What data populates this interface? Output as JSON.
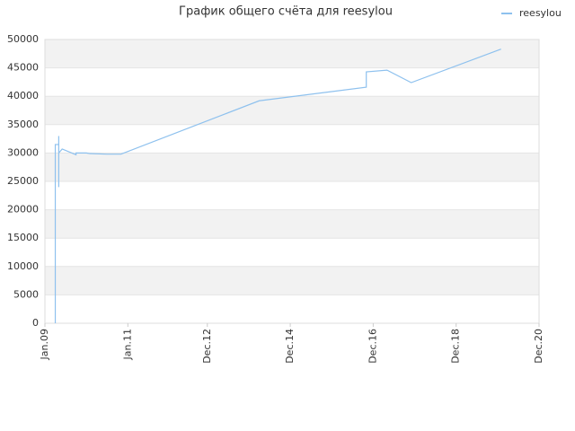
{
  "chart_data": {
    "type": "line",
    "title": "График общего счёта для reesylou",
    "x": [
      "2009-04",
      "2009-04",
      "2009-05",
      "2009-05",
      "2009-05",
      "2009-05",
      "2009-06",
      "2009-10",
      "2009-10",
      "2010-01",
      "2010-02",
      "2010-07",
      "2010-11",
      "2014-03",
      "2016-10",
      "2016-10",
      "2017-04",
      "2017-11",
      "2020-01"
    ],
    "series": [
      {
        "name": "reesylou",
        "color": "#8ec1ee",
        "values": [
          0,
          31500,
          31500,
          33000,
          24000,
          30000,
          30700,
          29700,
          30000,
          30000,
          29900,
          29800,
          29800,
          39200,
          41600,
          44300,
          44600,
          42400,
          48300
        ]
      }
    ],
    "xlim": [
      "2009-01",
      "2020-12"
    ],
    "xticks": [
      {
        "value": "2009-01",
        "label": "Jan.09"
      },
      {
        "value": "2011-01",
        "label": "Jan.11"
      },
      {
        "value": "2012-12",
        "label": "Dec.12"
      },
      {
        "value": "2014-12",
        "label": "Dec.14"
      },
      {
        "value": "2016-12",
        "label": "Dec.16"
      },
      {
        "value": "2018-12",
        "label": "Dec.18"
      },
      {
        "value": "2020-12",
        "label": "Dec.20"
      }
    ],
    "ylim": [
      0,
      50000
    ],
    "yticks": [
      0,
      5000,
      10000,
      15000,
      20000,
      25000,
      30000,
      35000,
      40000,
      45000,
      50000
    ],
    "grid": true,
    "legend": "top-right"
  }
}
